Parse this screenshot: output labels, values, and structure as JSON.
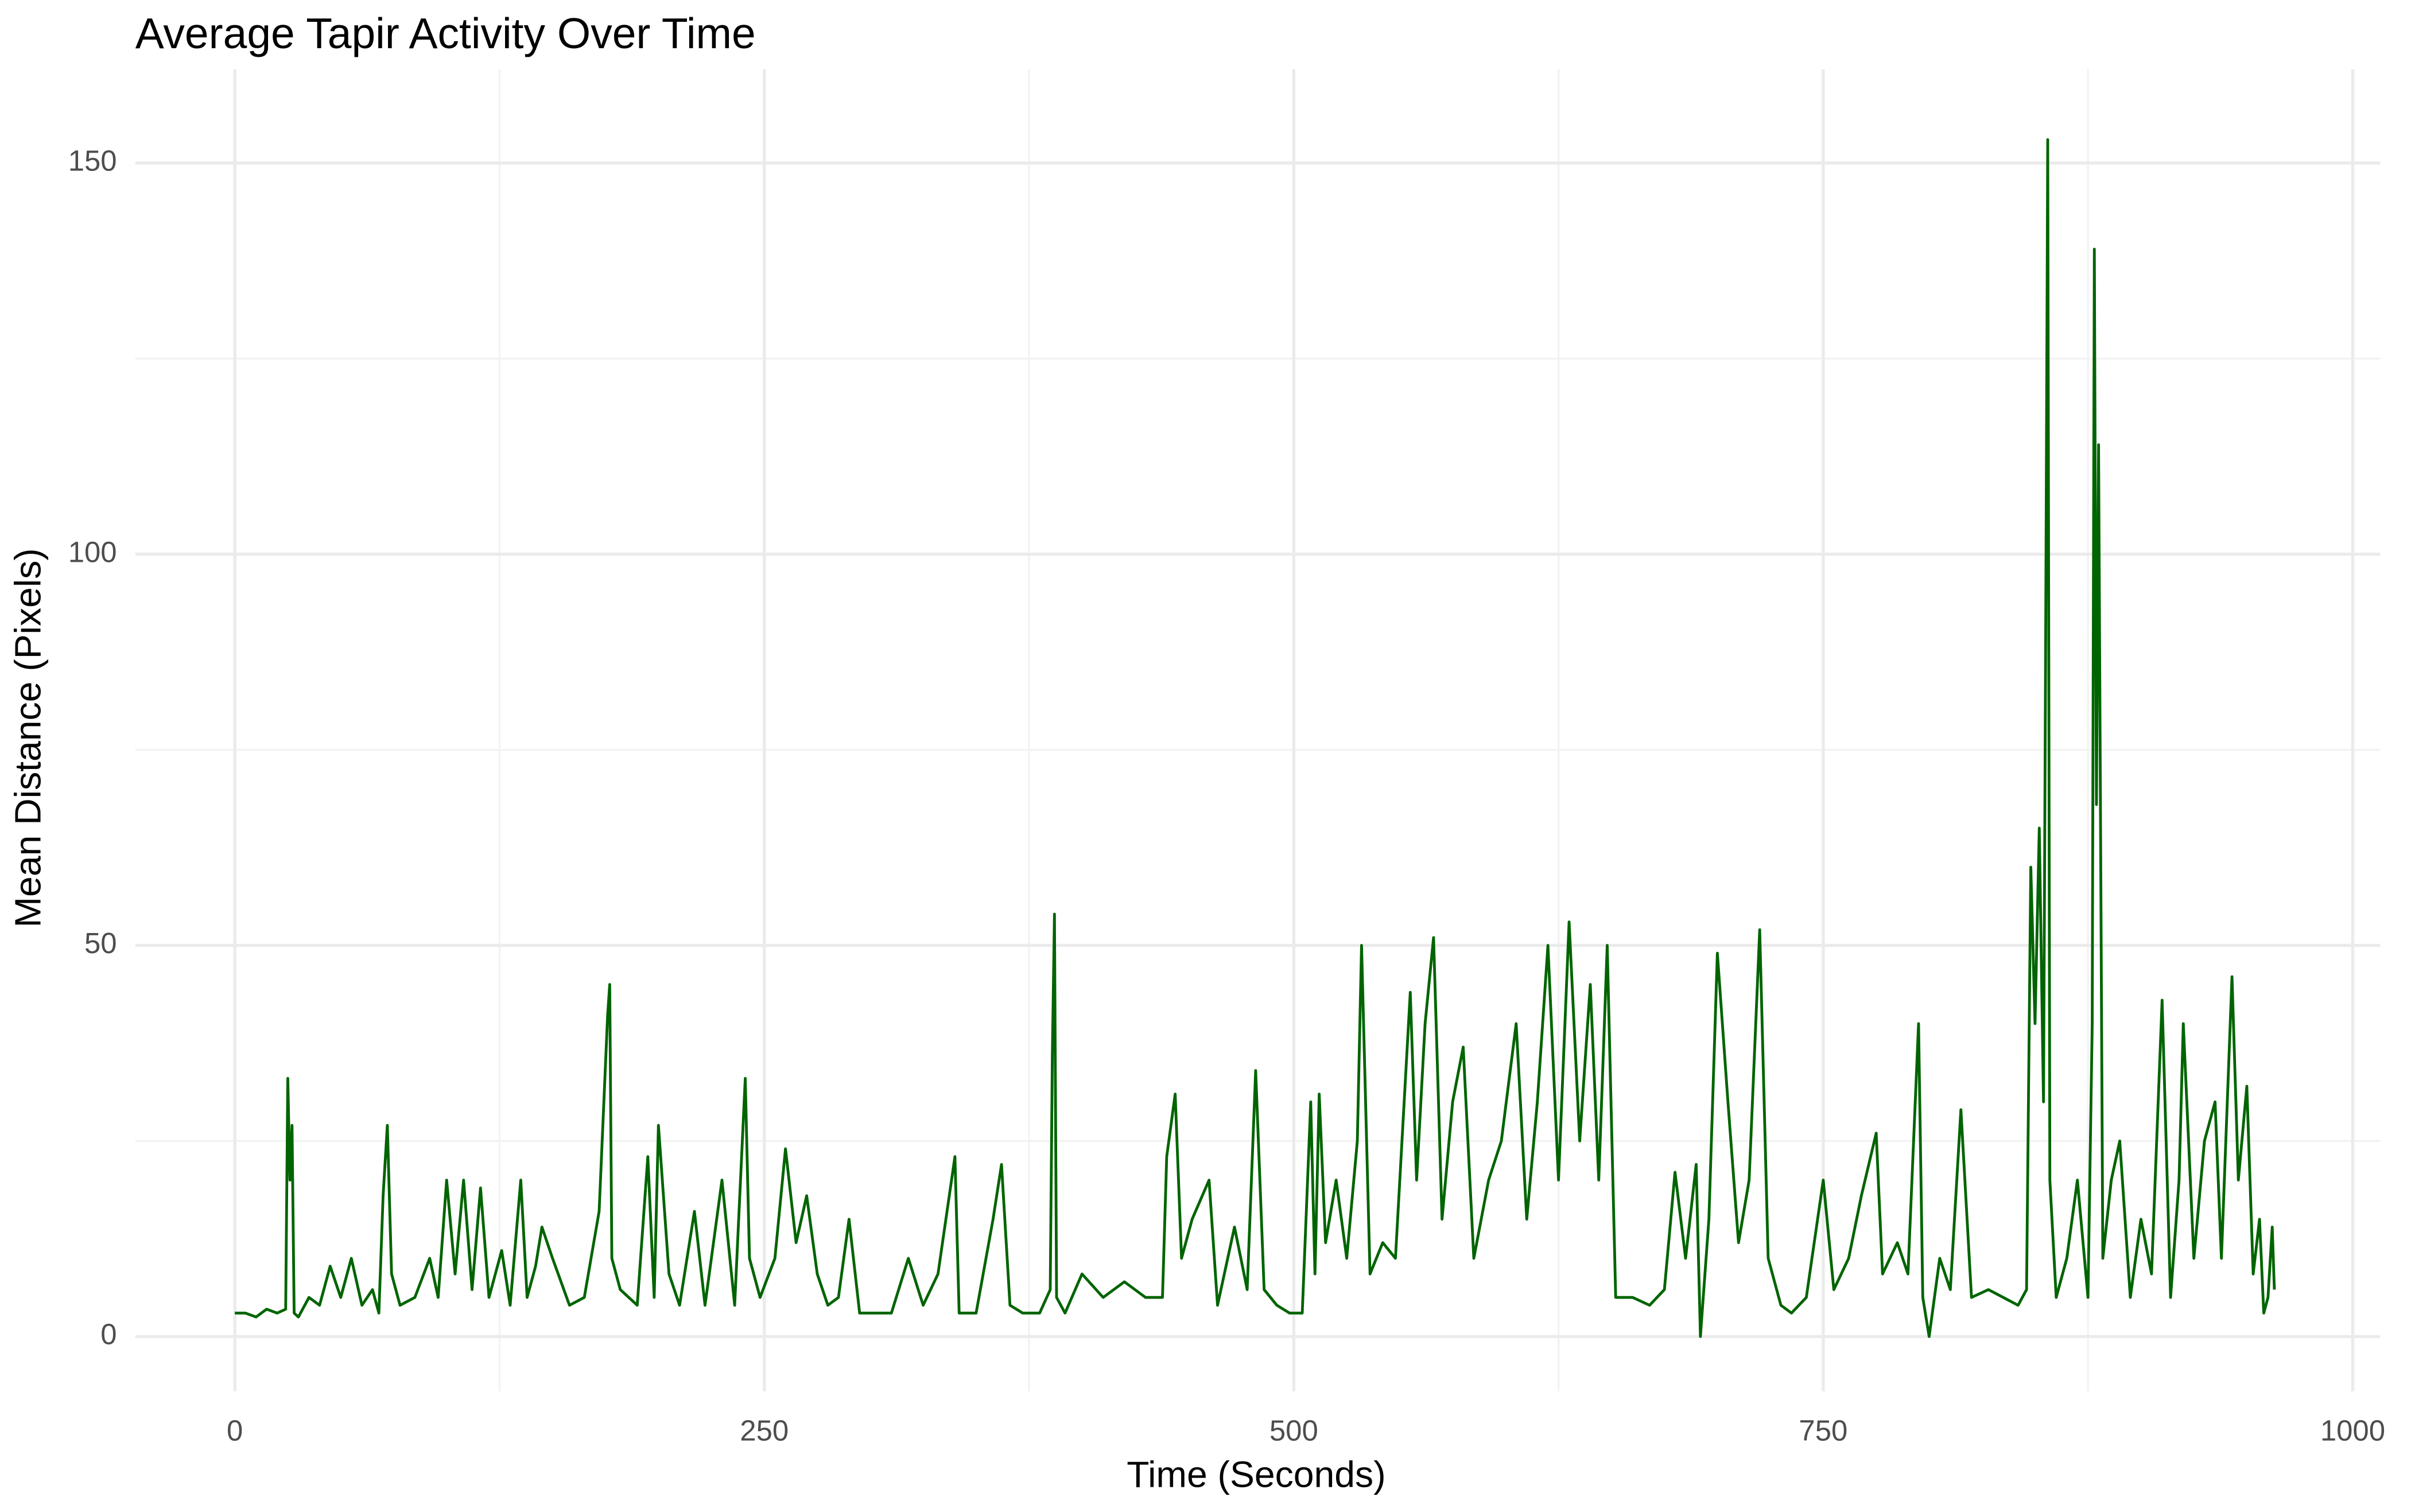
{
  "chart_data": {
    "type": "line",
    "title": "Average Tapir Activity Over Time",
    "x_label": "Time (Seconds)",
    "y_label": "Mean Distance (Pixels)",
    "xlim": [
      -47,
      1013
    ],
    "ylim": [
      -7,
      162
    ],
    "xticks": [
      0,
      250,
      500,
      750,
      1000
    ],
    "yticks": [
      0,
      50,
      100,
      150
    ],
    "x_minor_grid": [
      125,
      375,
      625,
      875
    ],
    "y_minor_grid": [
      25,
      75,
      125
    ],
    "grid": true,
    "series": [
      {
        "name": "Mean Distance",
        "color": "#006400",
        "x": [
          0,
          5,
          10,
          15,
          20,
          24,
          25,
          26,
          27,
          28,
          30,
          35,
          40,
          45,
          50,
          55,
          60,
          65,
          68,
          70,
          72,
          74,
          78,
          85,
          92,
          96,
          100,
          104,
          108,
          112,
          116,
          120,
          126,
          130,
          135,
          138,
          142,
          145,
          150,
          158,
          165,
          172,
          176,
          177,
          178,
          182,
          190,
          195,
          198,
          200,
          205,
          210,
          217,
          222,
          230,
          236,
          241,
          243,
          248,
          255,
          260,
          265,
          270,
          275,
          280,
          285,
          290,
          295,
          300,
          310,
          318,
          325,
          332,
          340,
          342,
          350,
          358,
          362,
          366,
          372,
          380,
          385,
          386,
          387,
          388,
          392,
          400,
          410,
          420,
          430,
          438,
          440,
          444,
          447,
          452,
          460,
          464,
          472,
          478,
          482,
          486,
          492,
          498,
          504,
          508,
          510,
          512,
          515,
          520,
          525,
          530,
          532,
          536,
          542,
          548,
          555,
          558,
          562,
          566,
          570,
          575,
          580,
          585,
          592,
          598,
          605,
          610,
          615,
          620,
          625,
          630,
          635,
          640,
          644,
          648,
          652,
          660,
          668,
          675,
          680,
          685,
          690,
          692,
          696,
          700,
          705,
          710,
          715,
          720,
          724,
          730,
          735,
          742,
          750,
          755,
          762,
          768,
          775,
          778,
          785,
          790,
          795,
          797,
          800,
          805,
          810,
          815,
          820,
          828,
          835,
          842,
          846,
          848,
          850,
          852,
          854,
          855,
          856,
          857,
          860,
          865,
          870,
          875,
          877,
          878,
          879,
          880,
          882,
          886,
          890,
          895,
          900,
          905,
          910,
          914,
          918,
          920,
          925,
          930,
          935,
          938,
          943,
          946,
          950,
          953,
          956,
          958,
          960,
          962,
          963
        ],
        "values": [
          3,
          3,
          2.5,
          3.5,
          3,
          3.5,
          33,
          20,
          27,
          3,
          2.5,
          5,
          4,
          9,
          5,
          10,
          4,
          6,
          3,
          18,
          27,
          8,
          4,
          5,
          10,
          5,
          20,
          8,
          20,
          6,
          19,
          5,
          11,
          4,
          20,
          5,
          9,
          14,
          10,
          4,
          5,
          16,
          41,
          45,
          10,
          6,
          4,
          23,
          5,
          27,
          8,
          4,
          16,
          4,
          20,
          4,
          33,
          10,
          5,
          10,
          24,
          12,
          18,
          8,
          4,
          5,
          15,
          3,
          3,
          3,
          10,
          4,
          8,
          23,
          3,
          3,
          15,
          22,
          4,
          3,
          3,
          6,
          36,
          54,
          5,
          3,
          8,
          5,
          7,
          5,
          5,
          23,
          31,
          10,
          15,
          20,
          4,
          14,
          6,
          34,
          6,
          4,
          3,
          3,
          30,
          8,
          31,
          12,
          20,
          10,
          25,
          50,
          8,
          12,
          10,
          44,
          20,
          40,
          51,
          15,
          30,
          37,
          10,
          20,
          25,
          40,
          15,
          30,
          50,
          20,
          53,
          25,
          45,
          20,
          50,
          5,
          5,
          4,
          6,
          21,
          10,
          22,
          0,
          15,
          49,
          30,
          12,
          20,
          52,
          10,
          4,
          3,
          5,
          20,
          6,
          10,
          18,
          26,
          8,
          12,
          8,
          40,
          5,
          0,
          10,
          6,
          29,
          5,
          6,
          5,
          4,
          6,
          60,
          40,
          65,
          30,
          88,
          153,
          20,
          5,
          10,
          20,
          5,
          40,
          139,
          68,
          114,
          10,
          20,
          25,
          5,
          15,
          8,
          43,
          5,
          20,
          40,
          10,
          25,
          30,
          10,
          46,
          20,
          32,
          8,
          15,
          3,
          5,
          14,
          6
        ]
      }
    ]
  }
}
